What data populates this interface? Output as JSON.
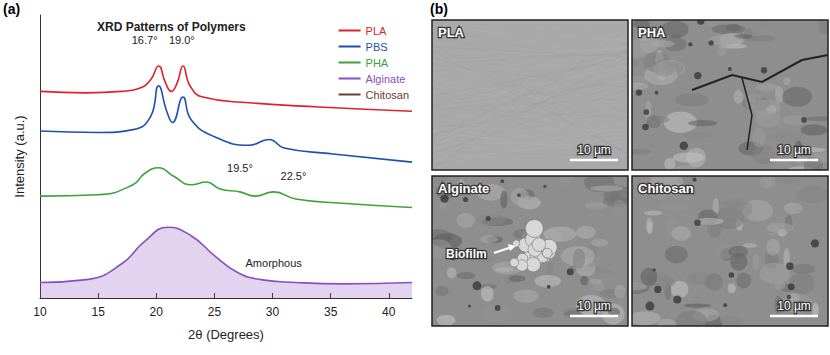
{
  "chart_data": {
    "type": "line",
    "title": "XRD Patterns of Polymers",
    "x_label": "2θ (Degrees)",
    "y_label": "Intensity (a.u.)",
    "xlim": [
      10,
      42
    ],
    "xticks": [
      10,
      15,
      20,
      25,
      30,
      35,
      40
    ],
    "ylim": [
      0,
      100
    ],
    "yticks": [],
    "tick_labels": "x",
    "grid": false,
    "legend": "upper right",
    "series": [
      {
        "name": "PLA",
        "color": "#e0202a",
        "x": [
          10,
          14,
          17,
          18.5,
          19.5,
          20.2,
          20.8,
          21.3,
          21.8,
          22.3,
          22.9,
          24,
          28,
          34,
          42
        ],
        "values": [
          73,
          72.5,
          73,
          74,
          77,
          82,
          76,
          73,
          76,
          82,
          75,
          71,
          69,
          67.5,
          66
        ]
      },
      {
        "name": "PBS",
        "color": "#1f4fb0",
        "x": [
          10,
          15,
          18,
          19.5,
          20.2,
          20.9,
          21.4,
          22.3,
          23,
          25,
          28,
          29.7,
          31,
          35,
          42
        ],
        "values": [
          59,
          58.5,
          59.5,
          64,
          75,
          66,
          62,
          71,
          63,
          57,
          54,
          56,
          53,
          51,
          48
        ]
      },
      {
        "name": "PHA",
        "color": "#3aa33a",
        "x": [
          10,
          15,
          18,
          19,
          20.2,
          21.5,
          23,
          24.3,
          25.5,
          27.2,
          28.5,
          30.1,
          32,
          36,
          42
        ],
        "values": [
          36,
          36.5,
          40,
          44,
          46,
          43,
          40,
          41,
          38.5,
          37.5,
          36,
          37.5,
          35,
          33.5,
          32
        ]
      },
      {
        "name": "Alginate",
        "color": "#8a4fc0",
        "type": "area",
        "x": [
          10,
          14,
          17,
          19,
          21,
          23,
          25,
          27,
          29,
          32,
          36,
          42
        ],
        "values": [
          5.5,
          6.5,
          12,
          20,
          25,
          22,
          15,
          9,
          6.5,
          5.5,
          5,
          5.5
        ]
      },
      {
        "name": "Chitosan",
        "color": "#6b3a2a",
        "x": [],
        "values": []
      }
    ],
    "annotations": [
      {
        "text": "16.7°",
        "x": 19.0,
        "y": 91
      },
      {
        "text": "19.0°",
        "x": 22.2,
        "y": 91
      },
      {
        "text": "19.5°",
        "x": 27.2,
        "y": 46
      },
      {
        "text": "22.5°",
        "x": 31.8,
        "y": 43
      },
      {
        "text": "Amorphous",
        "x": 30.1,
        "y": 12.5
      }
    ]
  },
  "figure": {
    "panel_labels": [
      "(a)",
      "(b)"
    ],
    "micrographs": [
      {
        "label": "PLA",
        "scale_bar": "10 µm"
      },
      {
        "label": "PHA",
        "scale_bar": "10 µm"
      },
      {
        "label": "Alginate",
        "scale_bar": "10 µm",
        "annotation": "Biofilm"
      },
      {
        "label": "Chitosan",
        "scale_bar": "10 µm"
      }
    ]
  }
}
